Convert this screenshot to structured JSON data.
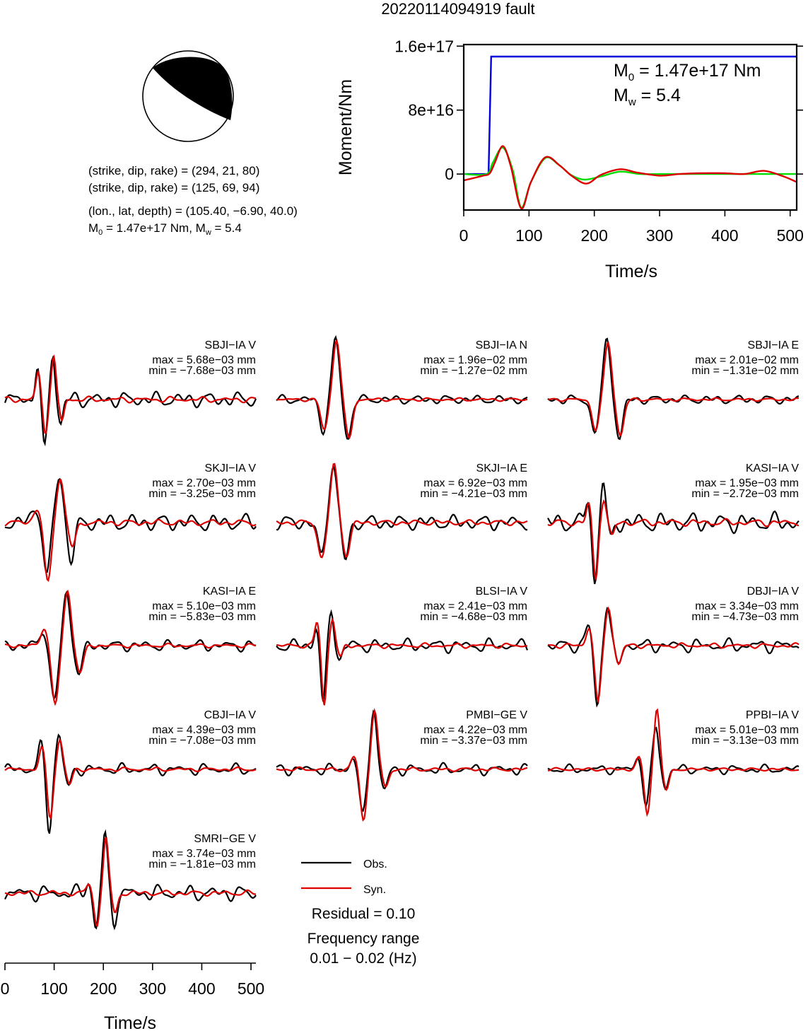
{
  "title": "20220114094919 fault",
  "mechanism": {
    "planes": [
      {
        "label": "(strike, dip, rake) = (294, 21, 80)",
        "strike": 294,
        "dip": 21,
        "rake": 80
      },
      {
        "label": "(strike, dip, rake) = (125, 69, 94)",
        "strike": 125,
        "dip": 69,
        "rake": 94
      }
    ],
    "location_label": "(lon., lat, depth) = (105.40, −6.90, 40.0)",
    "m0_prefix": "M",
    "m0_sub": "0",
    "m0_text": " = 1.47e+17 Nm, M",
    "mw_sub": "w",
    "mw_text": " = 5.4"
  },
  "chart_data": [
    {
      "type": "line",
      "name": "moment",
      "xlabel": "Time/s",
      "ylabel": "Moment/Nm",
      "xlim": [
        0,
        510
      ],
      "ylim": [
        -4.5e+16,
        1.62e+17
      ],
      "xticks": [
        0,
        100,
        200,
        300,
        400,
        500
      ],
      "yticks": [
        {
          "value": 1.6e+17,
          "label": "1.6e+17"
        },
        {
          "value": 8e+16,
          "label": "8e+16"
        },
        {
          "value": 0,
          "label": "0"
        }
      ],
      "annotation": {
        "m0_prefix": "M",
        "m0_sub": "0",
        "m0_text": " = 1.47e+17 Nm",
        "mw_prefix": "M",
        "mw_sub": "w",
        "mw_text": " = 5.4"
      },
      "series": [
        {
          "color": "#0000dd",
          "x": [
            0,
            38,
            42,
            510
          ],
          "y": [
            0,
            0,
            1.47e+17,
            1.47e+17
          ]
        },
        {
          "color": "#00dd00",
          "x": [
            0,
            35,
            45,
            60,
            75,
            88,
            103,
            125,
            145,
            165,
            185,
            210,
            240,
            270,
            300,
            350,
            400,
            450,
            510
          ],
          "y": [
            0,
            0,
            1.5e+16,
            3.3e+16,
            5000000000000000.0,
            -4.2e+16,
            -1e+16,
            2e+16,
            1.2e+16,
            -1500000000000000.0,
            -7000000000000000.0,
            -3000000000000000.0,
            3000000000000000.0,
            0,
            0,
            0,
            0,
            0,
            0
          ]
        },
        {
          "color": "#dd0000",
          "x": [
            0,
            15,
            30,
            40,
            48,
            60,
            72,
            88,
            103,
            125,
            148,
            165,
            188,
            210,
            240,
            265,
            300,
            330,
            360,
            400,
            430,
            460,
            490,
            510
          ],
          "y": [
            -8000000000000000.0,
            -5000000000000000.0,
            -2000000000000000.0,
            1000000000000000.0,
            1.5e+16,
            3.5e+16,
            1e+16,
            -4.3e+16,
            -1e+16,
            2.1e+16,
            1e+16,
            -2000000000000000.0,
            -1.2e+16,
            -1000000000000000.0,
            6000000000000000.0,
            2000000000000000.0,
            -2000000000000000.0,
            0,
            1000000000000000.0,
            1000000000000000.0,
            0,
            4000000000000000.0,
            -3000000000000000.0,
            -1e+16
          ]
        }
      ]
    },
    {
      "type": "line",
      "name": "waveforms",
      "xlabel": "Time/s",
      "xlim": [
        0,
        510
      ],
      "xticks": [
        0,
        100,
        200,
        300,
        400,
        500
      ],
      "panels": [
        {
          "station": "SBJI−IA V",
          "max": "max = 5.68e−03 mm",
          "min": "min = −7.68e−03 mm",
          "pulse_x": 80,
          "pulse_w": 12,
          "obs_amp": [
            0.55,
            -0.85,
            0.75,
            -0.4
          ],
          "syn_amp": [
            0.45,
            -0.55,
            0.7,
            -0.35
          ],
          "noise": 0.07
        },
        {
          "station": "SBJI−IA N",
          "max": "max = 1.96e−02 mm",
          "min": "min = −1.27e−02 mm",
          "pulse_x": 95,
          "pulse_w": 18,
          "obs_amp": [
            0.0,
            -0.5,
            1.0,
            -0.65
          ],
          "syn_amp": [
            0.0,
            -0.5,
            1.0,
            -0.65
          ],
          "noise": 0.04
        },
        {
          "station": "SBJI−IA E",
          "max": "max = 2.01e−02 mm",
          "min": "min = −1.31e−02 mm",
          "pulse_x": 95,
          "pulse_w": 18,
          "obs_amp": [
            0.0,
            -0.55,
            1.0,
            -0.65
          ],
          "syn_amp": [
            0.0,
            -0.5,
            0.95,
            -0.6
          ],
          "noise": 0.04
        },
        {
          "station": "SKJI−IA V",
          "max": "max = 2.70e−03 mm",
          "min": "min = −3.25e−03 mm",
          "pulse_x": 85,
          "pulse_w": 18,
          "obs_amp": [
            0.3,
            -0.9,
            0.8,
            -0.6
          ],
          "syn_amp": [
            0.25,
            -1.0,
            0.75,
            -0.4
          ],
          "noise": 0.08
        },
        {
          "station": "SKJI−IA E",
          "max": "max = 6.92e−03 mm",
          "min": "min = −4.21e−03 mm",
          "pulse_x": 90,
          "pulse_w": 18,
          "obs_amp": [
            0.0,
            -0.55,
            1.0,
            -0.6
          ],
          "syn_amp": [
            0.0,
            -0.6,
            0.95,
            -0.55
          ],
          "noise": 0.07
        },
        {
          "station": "KASI−IA V",
          "max": "max = 1.95e−03 mm",
          "min": "min = −2.72e−03 mm",
          "pulse_x": 95,
          "pulse_w": 12,
          "obs_amp": [
            0.4,
            -1.0,
            0.65,
            -0.3
          ],
          "syn_amp": [
            0.3,
            -0.95,
            0.4,
            -0.25
          ],
          "noise": 0.09
        },
        {
          "station": "KASI−IA E",
          "max": "max = 5.10e−03 mm",
          "min": "min = −5.83e−03 mm",
          "pulse_x": 100,
          "pulse_w": 18,
          "obs_amp": [
            0.25,
            -0.95,
            0.85,
            -0.45
          ],
          "syn_amp": [
            0.3,
            -1.0,
            0.9,
            -0.45
          ],
          "noise": 0.05
        },
        {
          "station": "BLSI−IA V",
          "max": "max = 2.41e−03 mm",
          "min": "min = −4.68e−03 mm",
          "pulse_x": 95,
          "pulse_w": 12,
          "obs_amp": [
            0.3,
            -1.0,
            0.6,
            -0.25
          ],
          "syn_amp": [
            0.4,
            -1.0,
            0.45,
            -0.2
          ],
          "noise": 0.06
        },
        {
          "station": "DBJI−IA V",
          "max": "max = 3.34e−03 mm",
          "min": "min = −4.73e−03 mm",
          "pulse_x": 100,
          "pulse_w": 15,
          "obs_amp": [
            0.35,
            -1.0,
            0.7,
            -0.35
          ],
          "syn_amp": [
            0.3,
            -0.95,
            0.65,
            -0.3
          ],
          "noise": 0.06
        },
        {
          "station": "CBJI−IA V",
          "max": "max = 4.39e−03 mm",
          "min": "min = −7.08e−03 mm",
          "pulse_x": 90,
          "pulse_w": 14,
          "obs_amp": [
            0.4,
            -1.0,
            0.6,
            -0.3
          ],
          "syn_amp": [
            0.35,
            -0.8,
            0.5,
            -0.25
          ],
          "noise": 0.05
        },
        {
          "station": "PMBI−GE V",
          "max": "max = 4.22e−03 mm",
          "min": "min = −3.37e−03 mm",
          "pulse_x": 175,
          "pulse_w": 16,
          "obs_amp": [
            0.2,
            -0.8,
            1.0,
            -0.35
          ],
          "syn_amp": [
            0.2,
            -0.85,
            1.0,
            -0.3
          ],
          "noise": 0.05
        },
        {
          "station": "PPBI−IA V",
          "max": "max = 5.01e−03 mm",
          "min": "min = −3.13e−03 mm",
          "pulse_x": 200,
          "pulse_w": 14,
          "obs_amp": [
            0.2,
            -0.6,
            0.7,
            -0.3
          ],
          "syn_amp": [
            0.2,
            -0.75,
            1.0,
            -0.35
          ],
          "noise": 0.04
        },
        {
          "station": "SMRI−GE V",
          "max": "max = 3.74e−03 mm",
          "min": "min = −1.81e−03 mm",
          "pulse_x": 185,
          "pulse_w": 13,
          "obs_amp": [
            0.2,
            -0.6,
            1.0,
            -0.5
          ],
          "syn_amp": [
            0.15,
            -0.55,
            0.95,
            -0.35
          ],
          "noise": 0.07
        }
      ]
    }
  ],
  "legend": {
    "obs_label": "Obs.",
    "syn_label": "Syn.",
    "obs_color": "#000000",
    "syn_color": "#dd0000"
  },
  "residual": "Residual = 0.10",
  "freq_label": "Frequency range",
  "freq_value": "0.01 − 0.02 (Hz)"
}
